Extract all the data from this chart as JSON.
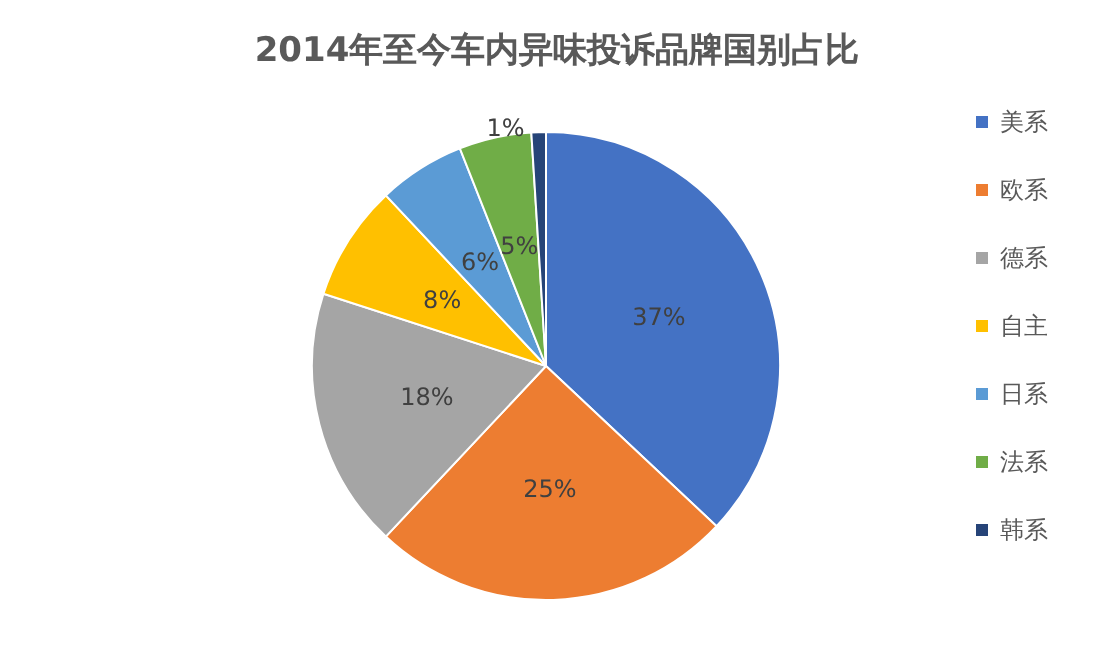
{
  "chart_data": {
    "type": "pie",
    "title": "2014年至今车内异味投诉品牌国别占比",
    "categories": [
      "美系",
      "欧系",
      "德系",
      "自主",
      "日系",
      "法系",
      "韩系"
    ],
    "values": [
      37,
      25,
      18,
      8,
      6,
      5,
      1
    ],
    "colors": [
      "#4472c4",
      "#ed7d31",
      "#a5a5a5",
      "#ffc000",
      "#5b9bd5",
      "#70ad47",
      "#264478"
    ],
    "value_labels": [
      "37%",
      "25%",
      "18%",
      "8%",
      "6%",
      "5%",
      "1%"
    ],
    "legend": "right"
  }
}
